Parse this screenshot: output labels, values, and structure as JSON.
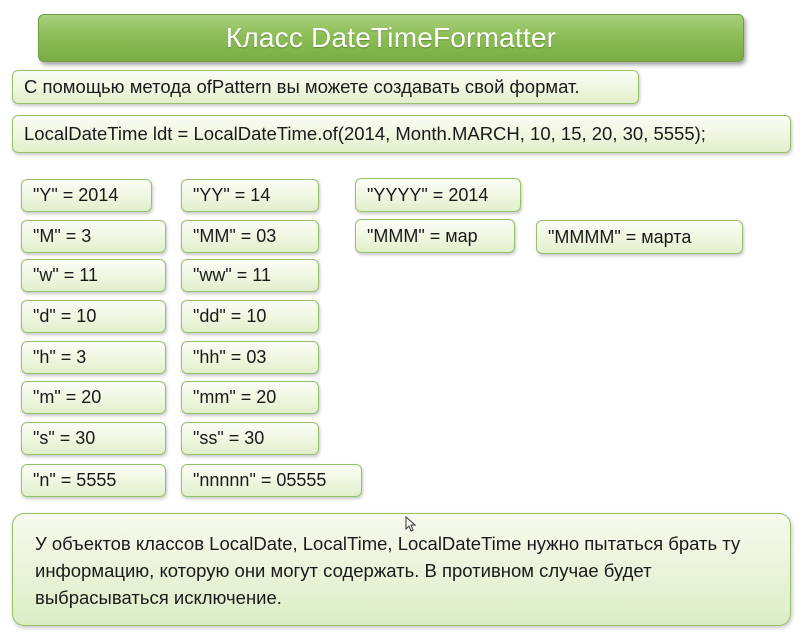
{
  "slide": {
    "title": "Класс DateTimeFormatter",
    "subtitle": "С помощью метода ofPattern вы можете создавать свой формат.",
    "code_line": "LocalDateTime ldt = LocalDateTime.of(2014, Month.MARCH, 10, 15, 20, 30, 5555);",
    "patterns": {
      "col1": [
        "\"Y\"  = 2014",
        "\"M\"  = 3",
        "\"w\"  = 11",
        "\"d\"  = 10",
        "\"h\"  = 3",
        "\"m\"  = 20",
        "\"s\"  = 30",
        "\"n\"  = 5555"
      ],
      "col2": [
        "\"YY\"  = 14",
        "\"MM\"  = 03",
        "\"ww\"  = 11",
        "\"dd\"  = 10",
        "\"hh\"  = 03",
        "\"mm\"  = 20",
        "\"ss\"  = 30",
        "\"nnnnn\"  = 05555"
      ],
      "col3": [
        "\"YYYY\"  = 2014",
        "\"MMM\"  = мар"
      ],
      "col4": [
        "\"MMMM\"  = марта"
      ]
    },
    "note": "У объектов классов LocalDate, LocalTime, LocalDateTime нужно пытаться брать ту информацию, которую они могут содержать. В противном случае будет выбрасываться исключение."
  },
  "colors": {
    "title_bg": "#8dbd57",
    "box_border": "#94c06a",
    "box_bg": "#eef6df"
  },
  "icons": {
    "cursor": "mouse-pointer-icon"
  }
}
